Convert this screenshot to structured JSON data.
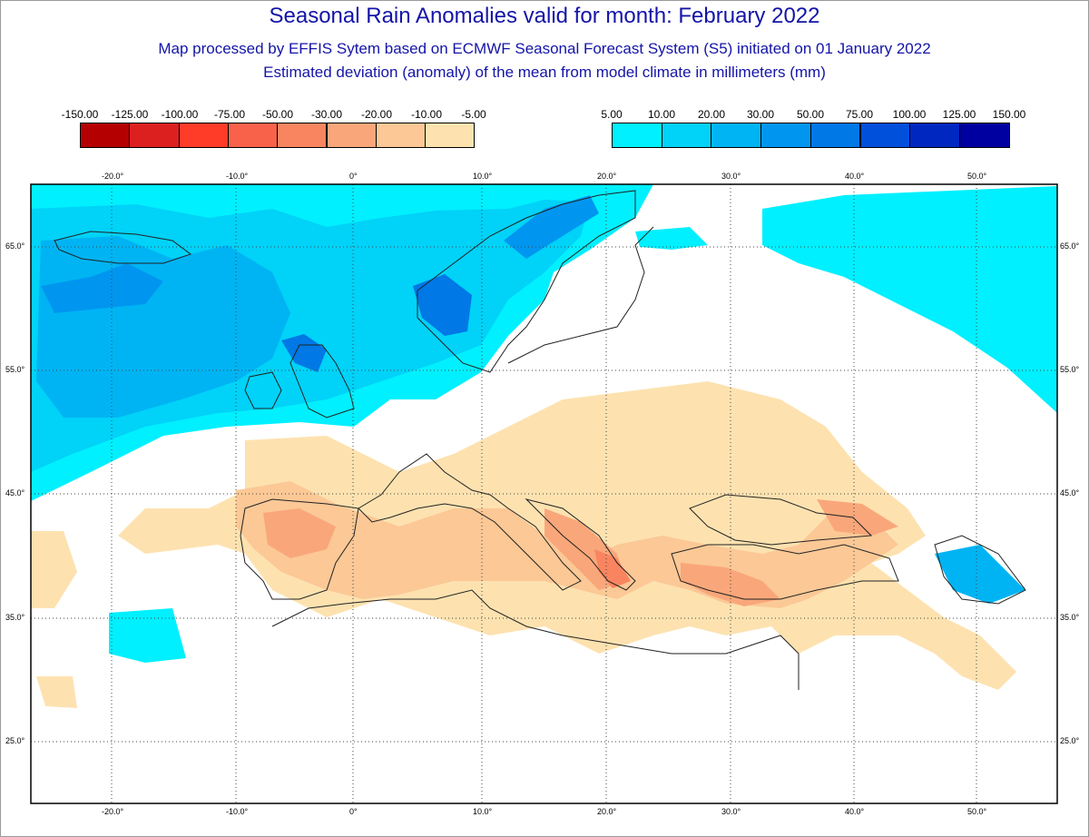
{
  "header": {
    "title": "Seasonal Rain Anomalies valid for month: February 2022",
    "subtitle": "Map processed by EFFIS Sytem based on ECMWF Seasonal Forecast System (S5) initiated on 01 January 2022",
    "description": "Estimated deviation (anomaly) of the mean from model climate in millimeters (mm)"
  },
  "legend": {
    "negative": {
      "labels": [
        "-150.00",
        "-125.00",
        "-100.00",
        "-75.00",
        "-50.00",
        "-30.00",
        "-20.00",
        "-10.00",
        "-5.00"
      ],
      "colors": [
        "#b40000",
        "#dc2020",
        "#ff3c28",
        "#f8624a",
        "#f98560",
        "#f9a77a",
        "#fbc896",
        "#fde2b0"
      ]
    },
    "positive": {
      "labels": [
        "5.00",
        "10.00",
        "20.00",
        "30.00",
        "50.00",
        "75.00",
        "100.00",
        "125.00",
        "150.00"
      ],
      "colors": [
        "#00f0ff",
        "#00d2f8",
        "#00b4f4",
        "#0096f0",
        "#0078e6",
        "#0050dc",
        "#0028c0",
        "#0000a0"
      ]
    }
  },
  "map": {
    "lon_labels": [
      "-20.0°",
      "-10.0°",
      "0°",
      "10.0°",
      "20.0°",
      "30.0°",
      "40.0°",
      "50.0°"
    ],
    "lat_labels": [
      "65.0°",
      "55.0°",
      "45.0°",
      "35.0°",
      "25.0°"
    ],
    "background": "#ffffff",
    "grid": "dotted"
  }
}
